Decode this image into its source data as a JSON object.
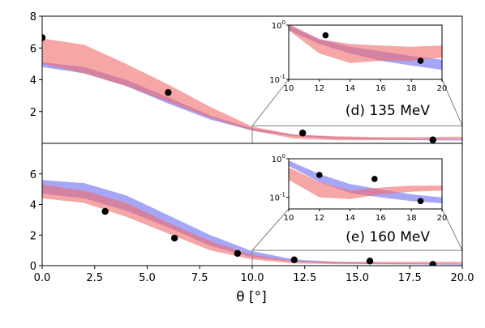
{
  "chart_data": {
    "type": "area",
    "xlabel": "θ [°]",
    "xlim": [
      0,
      20
    ],
    "x_ticks": [
      "0.0",
      "2.5",
      "5.0",
      "7.5",
      "10.0",
      "12.5",
      "15.0",
      "17.5",
      "20.0"
    ],
    "series_colors": {
      "blue": "#6a6af0",
      "red": "#f26a6a",
      "points": "#000000"
    },
    "panels": [
      {
        "label": "(d) 135 MeV",
        "ylim": [
          0,
          8
        ],
        "y_ticks": [
          "2",
          "4",
          "6",
          "8"
        ],
        "bands": [
          {
            "color": "blue",
            "x": [
              0,
              2,
              4,
              6,
              8,
              10,
              12,
              14,
              16,
              18,
              20
            ],
            "low": [
              4.8,
              4.4,
              3.6,
              2.5,
              1.5,
              0.8,
              0.45,
              0.3,
              0.25,
              0.2,
              0.18
            ],
            "high": [
              5.1,
              4.8,
              4.0,
              2.9,
              1.75,
              0.95,
              0.55,
              0.4,
              0.33,
              0.28,
              0.25
            ]
          },
          {
            "color": "red",
            "x": [
              0,
              2,
              4,
              6,
              8,
              10,
              12,
              14,
              16,
              18,
              20
            ],
            "low": [
              5.0,
              4.4,
              3.6,
              2.6,
              1.6,
              0.8,
              0.3,
              0.2,
              0.2,
              0.22,
              0.25
            ],
            "high": [
              6.6,
              6.2,
              5.0,
              3.7,
              2.3,
              1.05,
              0.55,
              0.45,
              0.4,
              0.4,
              0.42
            ]
          }
        ],
        "points": {
          "x": [
            0.0,
            6.0,
            12.4,
            18.6
          ],
          "y": [
            6.65,
            3.2,
            0.65,
            0.22
          ]
        },
        "inset": {
          "xlim": [
            10,
            20
          ],
          "x_ticks": [
            "10",
            "12",
            "14",
            "16",
            "18",
            "20"
          ],
          "y_log_range": [
            0.1,
            1.0
          ],
          "y_ticks": [
            "10^-1",
            "10^0"
          ],
          "bands": [
            {
              "color": "blue",
              "x": [
                10,
                12,
                14,
                16,
                18,
                20
              ],
              "low": [
                0.8,
                0.45,
                0.3,
                0.22,
                0.18,
                0.15
              ],
              "high": [
                1.0,
                0.55,
                0.4,
                0.33,
                0.27,
                0.23
              ]
            },
            {
              "color": "red",
              "x": [
                10,
                12,
                14,
                16,
                18,
                20
              ],
              "low": [
                0.8,
                0.3,
                0.2,
                0.22,
                0.22,
                0.25
              ],
              "high": [
                1.05,
                0.55,
                0.45,
                0.42,
                0.4,
                0.42
              ]
            }
          ],
          "points": {
            "x": [
              12.4,
              18.6
            ],
            "y": [
              0.65,
              0.22
            ]
          }
        }
      },
      {
        "label": "(e) 160 MeV",
        "ylim": [
          0,
          8
        ],
        "y_ticks": [
          "0",
          "2",
          "4",
          "6"
        ],
        "bands": [
          {
            "color": "blue",
            "x": [
              0,
              2,
              4,
              6,
              8,
              10,
              12,
              14,
              16,
              18,
              20
            ],
            "low": [
              4.7,
              4.4,
              3.6,
              2.5,
              1.3,
              0.55,
              0.25,
              0.15,
              0.1,
              0.08,
              0.06
            ],
            "high": [
              5.6,
              5.4,
              4.6,
              3.3,
              2.0,
              0.95,
              0.4,
              0.25,
              0.18,
              0.15,
              0.12
            ]
          },
          {
            "color": "red",
            "x": [
              0,
              2,
              4,
              6,
              8,
              10,
              12,
              14,
              16,
              18,
              20
            ],
            "low": [
              4.4,
              4.1,
              3.2,
              2.1,
              1.0,
              0.4,
              0.15,
              0.1,
              0.1,
              0.1,
              0.1
            ],
            "high": [
              5.3,
              4.9,
              4.1,
              2.8,
              1.6,
              0.7,
              0.3,
              0.25,
              0.25,
              0.25,
              0.25
            ]
          }
        ],
        "points": {
          "x": [
            3.0,
            6.3,
            9.3,
            12.0,
            15.6,
            18.6
          ],
          "y": [
            3.55,
            1.8,
            0.8,
            0.38,
            0.3,
            0.08
          ]
        },
        "inset": {
          "xlim": [
            10,
            20
          ],
          "x_ticks": [
            "10",
            "12",
            "14",
            "16",
            "18",
            "20"
          ],
          "y_log_range": [
            0.05,
            1.0
          ],
          "y_ticks": [
            "10^-1",
            "10^0"
          ],
          "bands": [
            {
              "color": "blue",
              "x": [
                10,
                12,
                14,
                16,
                18,
                20
              ],
              "low": [
                0.65,
                0.25,
                0.13,
                0.1,
                0.08,
                0.07
              ],
              "high": [
                0.9,
                0.4,
                0.22,
                0.16,
                0.12,
                0.1
              ]
            },
            {
              "color": "red",
              "x": [
                10,
                12,
                14,
                16,
                18,
                20
              ],
              "low": [
                0.28,
                0.1,
                0.09,
                0.12,
                0.14,
                0.15
              ],
              "high": [
                0.6,
                0.25,
                0.15,
                0.18,
                0.2,
                0.2
              ]
            }
          ],
          "points": {
            "x": [
              12.0,
              15.6,
              18.6
            ],
            "y": [
              0.38,
              0.3,
              0.08
            ]
          }
        }
      }
    ]
  }
}
